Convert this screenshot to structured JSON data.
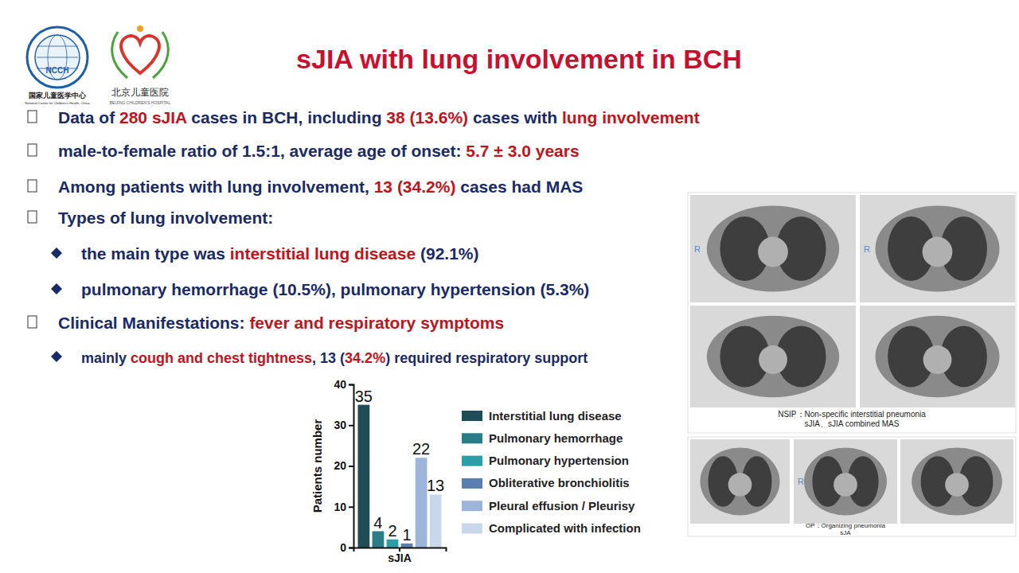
{
  "logos": {
    "ncch_emblem": "NCCH",
    "ncch_name_cn": "国家儿童医学中心",
    "ncch_name_en": "National Center for Children's Health, China",
    "bch_name_cn": "北京儿童医院",
    "bch_name_en": "BEIJING CHILDREN'S HOSPITAL"
  },
  "title": "sJIA with lung involvement in BCH",
  "bullets": [
    {
      "segments": [
        {
          "text": "Data of ",
          "color": "#1a2a66"
        },
        {
          "text": "280 sJIA",
          "color": "#c0141c"
        },
        {
          "text": " cases in BCH, including ",
          "color": "#1a2a66"
        },
        {
          "text": "38 (13.6%)",
          "color": "#c0141c"
        },
        {
          "text": " cases with ",
          "color": "#1a2a66"
        },
        {
          "text": "lung involvement",
          "color": "#c0141c"
        }
      ]
    },
    {
      "segments": [
        {
          "text": "male-to-female ratio of 1.5:1, average age of onset: ",
          "color": "#1a2a66"
        },
        {
          "text": "5.7 ± 3.0 years",
          "color": "#c0141c"
        }
      ]
    },
    {
      "segments": [
        {
          "text": "Among patients with lung involvement, ",
          "color": "#1a2a66"
        },
        {
          "text": "13 (34.2%)",
          "color": "#c0141c"
        },
        {
          "text": " cases had MAS",
          "color": "#1a2a66"
        }
      ]
    },
    {
      "segments": [
        {
          "text": "Types of lung involvement:",
          "color": "#1a2a66"
        }
      ],
      "subs": [
        {
          "segments": [
            {
              "text": "the main type was ",
              "color": "#1a2a66"
            },
            {
              "text": "interstitial lung disease",
              "color": "#c0141c"
            },
            {
              "text": " (92.1%)",
              "color": "#1a2a66"
            }
          ]
        },
        {
          "segments": [
            {
              "text": "pulmonary hemorrhage (10.5%), pulmonary hypertension (5.3%)",
              "color": "#1a2a66"
            }
          ]
        }
      ]
    },
    {
      "segments": [
        {
          "text": "Clinical Manifestations: ",
          "color": "#1a2a66"
        },
        {
          "text": "fever and respiratory symptoms",
          "color": "#c0141c"
        }
      ],
      "subs": [
        {
          "segments": [
            {
              "text": "mainly ",
              "color": "#1a2a66"
            },
            {
              "text": "cough and chest tightness",
              "color": "#c0141c"
            },
            {
              "text": ", 13 (",
              "color": "#1a2a66"
            },
            {
              "text": "34.2%",
              "color": "#c0141c"
            },
            {
              "text": ") required respiratory support",
              "color": "#1a2a66"
            }
          ]
        }
      ]
    }
  ],
  "images": {
    "orientation_label": "R",
    "top_caption": [
      "NSIP：Non-specific interstitial pneumonia",
      "sJIA、sJIA combined MAS"
    ],
    "bottom_caption": [
      "OP：Organizing pneumonia",
      "sJA"
    ]
  },
  "chart_data": {
    "type": "bar",
    "categories": [
      "sJIA"
    ],
    "y_label": "Patients number",
    "series": [
      {
        "name": "Interstitial lung disease",
        "color": "#1f4d57",
        "values": [
          35
        ]
      },
      {
        "name": "Pulmonary hemorrhage",
        "color": "#2a7c86",
        "values": [
          4
        ]
      },
      {
        "name": "Pulmonary hypertension",
        "color": "#2b9ea6",
        "values": [
          2
        ]
      },
      {
        "name": "Obliterative bronchiolitis",
        "color": "#5a7eae",
        "values": [
          1
        ]
      },
      {
        "name": "Pleural effusion / Pleurisy",
        "color": "#9cb5d8",
        "values": [
          22
        ]
      },
      {
        "name": "Complicated with infection",
        "color": "#c8d8ea",
        "values": [
          13
        ]
      }
    ],
    "ylim": [
      0,
      40
    ],
    "yticks": [
      0,
      10,
      20,
      30,
      40
    ],
    "grid": false,
    "legend": "right",
    "data_labels": true
  }
}
